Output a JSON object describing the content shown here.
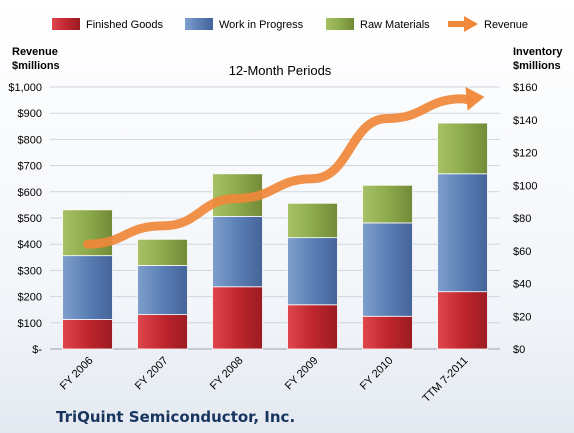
{
  "chart_data": {
    "type": "bar",
    "stacked": true,
    "title": "12-Month Periods",
    "categories": [
      "FY 2006",
      "FY 2007",
      "FY 2008",
      "FY 2009",
      "FY 2010",
      "TTM 7-2011"
    ],
    "series": [
      {
        "name": "Finished Goods",
        "axis": "right",
        "color": "#c0262d",
        "values": [
          18,
          21,
          38,
          27,
          20,
          35
        ]
      },
      {
        "name": "Work in Progress",
        "axis": "right",
        "color": "#5b7fb5",
        "values": [
          39,
          30,
          43,
          41,
          57,
          72
        ]
      },
      {
        "name": "Raw Materials",
        "axis": "right",
        "color": "#8daa4c",
        "values": [
          28,
          16,
          26,
          21,
          23,
          31
        ]
      },
      {
        "name": "Revenue",
        "type": "line",
        "axis": "left",
        "color": "#f0883a",
        "values": [
          400,
          470,
          575,
          650,
          880,
          955
        ]
      }
    ],
    "y_left": {
      "label_line1": "Revenue",
      "label_line2": "$millions",
      "range": [
        0,
        1000
      ],
      "ticks": [
        "$-",
        "$100",
        "$200",
        "$300",
        "$400",
        "$500",
        "$600",
        "$700",
        "$800",
        "$900",
        "$1,000"
      ]
    },
    "y_right": {
      "label_line1": "Inventory",
      "label_line2": "$millions",
      "range": [
        0,
        160
      ],
      "ticks": [
        "$0",
        "$20",
        "$40",
        "$60",
        "$80",
        "$100",
        "$120",
        "$140",
        "$160"
      ]
    },
    "grid": true,
    "legend_position": "top"
  },
  "company": "TriQuint Semiconductor, Inc."
}
